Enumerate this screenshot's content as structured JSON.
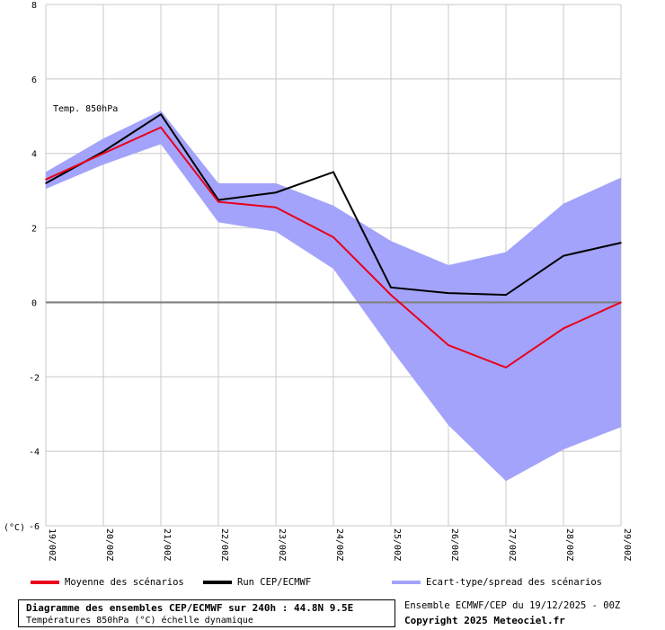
{
  "chart_data": {
    "type": "line",
    "series_label": "Temp. 850hPa",
    "y_unit_label": "(°C)",
    "ylim": [
      -6,
      8
    ],
    "yticks": [
      "8",
      "6",
      "4",
      "2",
      "0",
      "-2",
      "-4",
      "-6"
    ],
    "categories": [
      "19/00Z",
      "20/00Z",
      "21/00Z",
      "22/00Z",
      "23/00Z",
      "24/00Z",
      "25/00Z",
      "26/00Z",
      "27/00Z",
      "28/00Z",
      "29/00Z"
    ],
    "grid": true,
    "series": [
      {
        "name": "Moyenne des scénarios",
        "color": "#e8001c",
        "values": [
          3.3,
          4.0,
          4.7,
          2.7,
          2.55,
          1.75,
          0.2,
          -1.15,
          -1.75,
          -0.7,
          0.0
        ]
      },
      {
        "name": "Run CEP/ECMWF",
        "color": "#000000",
        "values": [
          3.2,
          4.05,
          5.05,
          2.75,
          2.95,
          3.5,
          0.4,
          0.25,
          0.2,
          1.25,
          1.6
        ]
      }
    ],
    "spread": {
      "name": "Ecart-type/spread des scénarios",
      "color": "#a3a3fb",
      "upper": [
        3.5,
        4.4,
        5.15,
        3.2,
        3.2,
        2.6,
        1.65,
        1.0,
        1.35,
        2.65,
        3.35
      ],
      "lower": [
        3.05,
        3.7,
        4.25,
        2.15,
        1.9,
        0.9,
        -1.25,
        -3.3,
        -4.8,
        -3.95,
        -3.35
      ]
    },
    "zero_line_color": "#808080"
  },
  "legend": {
    "mean_label": "Moyenne des scénarios",
    "run_label": "Run CEP/ECMWF",
    "spread_label": "Ecart-type/spread des scénarios"
  },
  "footer": {
    "title": "Diagramme des ensembles CEP/ECMWF sur 240h : 44.8N 9.5E",
    "subtitle": "Températures 850hPa (°C) échelle dynamique",
    "ensemble": "Ensemble ECMWF/CEP du 19/12/2025 - 00Z",
    "copyright": "Copyright 2025 Meteociel.fr"
  }
}
